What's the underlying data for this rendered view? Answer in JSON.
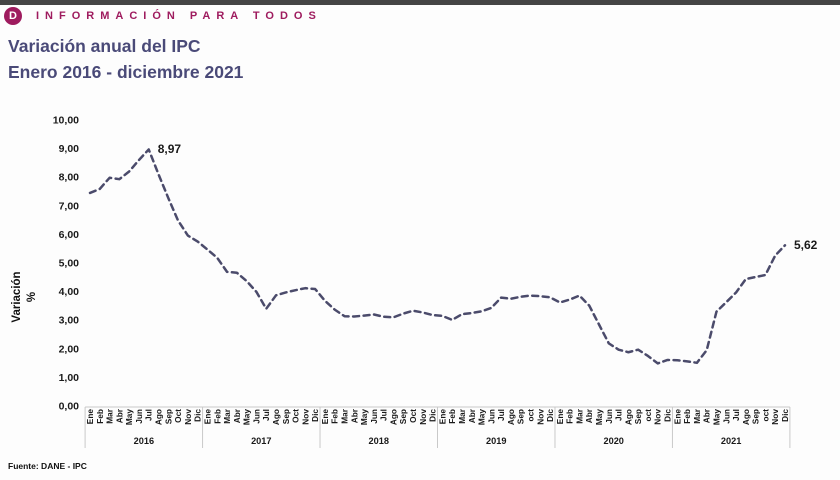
{
  "header": {
    "brand": "I N F O R M A C I Ó N   P A R A   T O D O S",
    "brand_plain": "INFORMACIÓN PARA TODOS",
    "logo_letter": "D"
  },
  "title": {
    "line1": "Variación anual del IPC",
    "line2": "Enero 2016 - diciembre 2021"
  },
  "y_axis": {
    "title_line1": "Variación",
    "title_line2": "%",
    "tick_labels": [
      "10,00",
      "9,00",
      "8,00",
      "7,00",
      "6,00",
      "5,00",
      "4,00",
      "3,00",
      "2,00",
      "1,00",
      "0,00"
    ]
  },
  "footer": {
    "source": "Fuente: DANE - IPC"
  },
  "colors": {
    "brand_magenta": "#9e1b5e",
    "title_purple": "#4a4a78",
    "line_color": "#4b4b6b",
    "label_color": "#1a1a1a",
    "separator_color": "#c9c9c9",
    "topbar_color": "#454545"
  },
  "chart_data": {
    "type": "line",
    "title": "Variación anual del IPC",
    "subtitle": "Enero 2016 - diciembre 2021",
    "xlabel": "",
    "ylabel": "Variación %",
    "ylim": [
      0,
      10
    ],
    "y_tick_step": 1,
    "grid": false,
    "legend": "none",
    "line_style": "dashed",
    "years": [
      {
        "year": "2016",
        "months": [
          "Ene",
          "Feb",
          "Mar",
          "Abr",
          "May",
          "Jun",
          "Jul",
          "Ago",
          "Sep",
          "Oct",
          "Nov",
          "Dic"
        ],
        "values": [
          7.45,
          7.59,
          7.98,
          7.93,
          8.2,
          8.6,
          8.97,
          8.1,
          7.27,
          6.48,
          5.96,
          5.75
        ]
      },
      {
        "year": "2017",
        "months": [
          "Ene",
          "Feb",
          "Mar",
          "Abr",
          "May",
          "Jun",
          "Jul",
          "Ago",
          "Sep",
          "Oct",
          "Nov",
          "Dic"
        ],
        "values": [
          5.47,
          5.18,
          4.69,
          4.66,
          4.37,
          3.99,
          3.4,
          3.87,
          3.97,
          4.05,
          4.12,
          4.09
        ]
      },
      {
        "year": "2018",
        "months": [
          "Ene",
          "Feb",
          "Mar",
          "Abr",
          "May",
          "Jun",
          "Jul",
          "Ago",
          "Sep",
          "Oct",
          "Nov",
          "Dic"
        ],
        "values": [
          3.68,
          3.37,
          3.14,
          3.13,
          3.16,
          3.2,
          3.12,
          3.1,
          3.23,
          3.33,
          3.27,
          3.18
        ]
      },
      {
        "year": "2019",
        "months": [
          "Ene",
          "Feb",
          "Mar",
          "Abr",
          "May",
          "Jun",
          "Jul",
          "Ago",
          "Sep",
          "oct",
          "Nov",
          "Dic"
        ],
        "values": [
          3.15,
          3.01,
          3.21,
          3.25,
          3.31,
          3.43,
          3.79,
          3.75,
          3.82,
          3.86,
          3.84,
          3.8
        ]
      },
      {
        "year": "2020",
        "months": [
          "Ene",
          "Feb",
          "Mar",
          "Abr",
          "May",
          "Jun",
          "Jul",
          "Ago",
          "Sep",
          "oct",
          "Nov",
          "Dic"
        ],
        "values": [
          3.62,
          3.72,
          3.86,
          3.51,
          2.85,
          2.19,
          1.97,
          1.88,
          1.97,
          1.75,
          1.49,
          1.61
        ]
      },
      {
        "year": "2021",
        "months": [
          "Ene",
          "Feb",
          "Mar",
          "Abr",
          "May",
          "Jun",
          "Jul",
          "Ago",
          "Sep",
          "oct",
          "Nov",
          "Dic"
        ],
        "values": [
          1.6,
          1.56,
          1.51,
          1.95,
          3.3,
          3.63,
          3.97,
          4.44,
          4.51,
          4.58,
          5.26,
          5.62
        ]
      }
    ],
    "annotations": [
      {
        "text": "8,97",
        "global_index": 6,
        "value": 8.97
      },
      {
        "text": "5,62",
        "global_index": 71,
        "value": 5.62
      }
    ]
  }
}
